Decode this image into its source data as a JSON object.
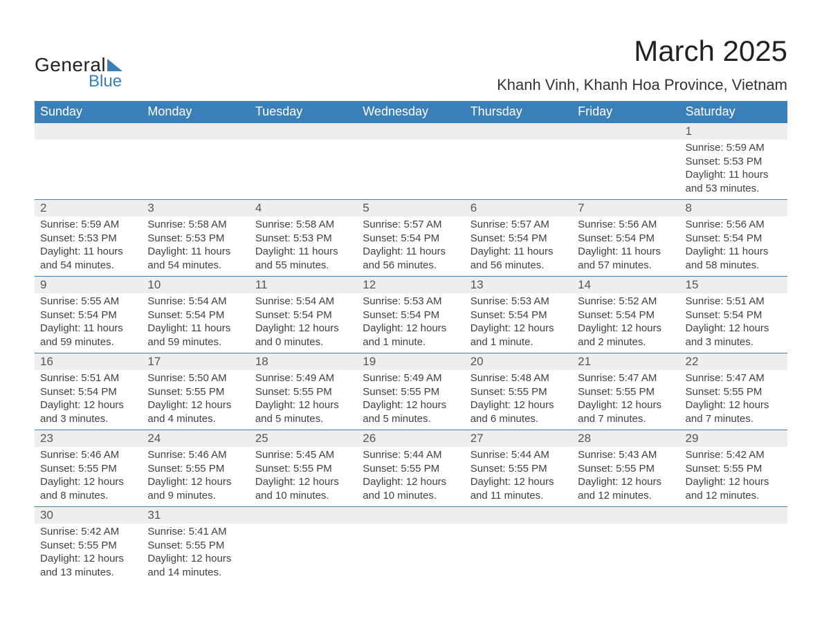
{
  "logo": {
    "line1": "General",
    "line2": "Blue"
  },
  "title": "March 2025",
  "location": "Khanh Vinh, Khanh Hoa Province, Vietnam",
  "colors": {
    "header_bg": "#3b7fb8",
    "header_text": "#ffffff",
    "daynum_bg": "#eeeeee",
    "border": "#3b7fb8",
    "body_text": "#404040",
    "title_text": "#222222",
    "logo_blue": "#3b7fb8"
  },
  "typography": {
    "title_fontsize": 42,
    "location_fontsize": 22,
    "dayheader_fontsize": 18,
    "daynum_fontsize": 17,
    "cell_fontsize": 15,
    "font_family": "Arial"
  },
  "day_headers": [
    "Sunday",
    "Monday",
    "Tuesday",
    "Wednesday",
    "Thursday",
    "Friday",
    "Saturday"
  ],
  "weeks": [
    [
      null,
      null,
      null,
      null,
      null,
      null,
      {
        "n": "1",
        "sr": "Sunrise: 5:59 AM",
        "ss": "Sunset: 5:53 PM",
        "d1": "Daylight: 11 hours",
        "d2": "and 53 minutes."
      }
    ],
    [
      {
        "n": "2",
        "sr": "Sunrise: 5:59 AM",
        "ss": "Sunset: 5:53 PM",
        "d1": "Daylight: 11 hours",
        "d2": "and 54 minutes."
      },
      {
        "n": "3",
        "sr": "Sunrise: 5:58 AM",
        "ss": "Sunset: 5:53 PM",
        "d1": "Daylight: 11 hours",
        "d2": "and 54 minutes."
      },
      {
        "n": "4",
        "sr": "Sunrise: 5:58 AM",
        "ss": "Sunset: 5:53 PM",
        "d1": "Daylight: 11 hours",
        "d2": "and 55 minutes."
      },
      {
        "n": "5",
        "sr": "Sunrise: 5:57 AM",
        "ss": "Sunset: 5:54 PM",
        "d1": "Daylight: 11 hours",
        "d2": "and 56 minutes."
      },
      {
        "n": "6",
        "sr": "Sunrise: 5:57 AM",
        "ss": "Sunset: 5:54 PM",
        "d1": "Daylight: 11 hours",
        "d2": "and 56 minutes."
      },
      {
        "n": "7",
        "sr": "Sunrise: 5:56 AM",
        "ss": "Sunset: 5:54 PM",
        "d1": "Daylight: 11 hours",
        "d2": "and 57 minutes."
      },
      {
        "n": "8",
        "sr": "Sunrise: 5:56 AM",
        "ss": "Sunset: 5:54 PM",
        "d1": "Daylight: 11 hours",
        "d2": "and 58 minutes."
      }
    ],
    [
      {
        "n": "9",
        "sr": "Sunrise: 5:55 AM",
        "ss": "Sunset: 5:54 PM",
        "d1": "Daylight: 11 hours",
        "d2": "and 59 minutes."
      },
      {
        "n": "10",
        "sr": "Sunrise: 5:54 AM",
        "ss": "Sunset: 5:54 PM",
        "d1": "Daylight: 11 hours",
        "d2": "and 59 minutes."
      },
      {
        "n": "11",
        "sr": "Sunrise: 5:54 AM",
        "ss": "Sunset: 5:54 PM",
        "d1": "Daylight: 12 hours",
        "d2": "and 0 minutes."
      },
      {
        "n": "12",
        "sr": "Sunrise: 5:53 AM",
        "ss": "Sunset: 5:54 PM",
        "d1": "Daylight: 12 hours",
        "d2": "and 1 minute."
      },
      {
        "n": "13",
        "sr": "Sunrise: 5:53 AM",
        "ss": "Sunset: 5:54 PM",
        "d1": "Daylight: 12 hours",
        "d2": "and 1 minute."
      },
      {
        "n": "14",
        "sr": "Sunrise: 5:52 AM",
        "ss": "Sunset: 5:54 PM",
        "d1": "Daylight: 12 hours",
        "d2": "and 2 minutes."
      },
      {
        "n": "15",
        "sr": "Sunrise: 5:51 AM",
        "ss": "Sunset: 5:54 PM",
        "d1": "Daylight: 12 hours",
        "d2": "and 3 minutes."
      }
    ],
    [
      {
        "n": "16",
        "sr": "Sunrise: 5:51 AM",
        "ss": "Sunset: 5:54 PM",
        "d1": "Daylight: 12 hours",
        "d2": "and 3 minutes."
      },
      {
        "n": "17",
        "sr": "Sunrise: 5:50 AM",
        "ss": "Sunset: 5:55 PM",
        "d1": "Daylight: 12 hours",
        "d2": "and 4 minutes."
      },
      {
        "n": "18",
        "sr": "Sunrise: 5:49 AM",
        "ss": "Sunset: 5:55 PM",
        "d1": "Daylight: 12 hours",
        "d2": "and 5 minutes."
      },
      {
        "n": "19",
        "sr": "Sunrise: 5:49 AM",
        "ss": "Sunset: 5:55 PM",
        "d1": "Daylight: 12 hours",
        "d2": "and 5 minutes."
      },
      {
        "n": "20",
        "sr": "Sunrise: 5:48 AM",
        "ss": "Sunset: 5:55 PM",
        "d1": "Daylight: 12 hours",
        "d2": "and 6 minutes."
      },
      {
        "n": "21",
        "sr": "Sunrise: 5:47 AM",
        "ss": "Sunset: 5:55 PM",
        "d1": "Daylight: 12 hours",
        "d2": "and 7 minutes."
      },
      {
        "n": "22",
        "sr": "Sunrise: 5:47 AM",
        "ss": "Sunset: 5:55 PM",
        "d1": "Daylight: 12 hours",
        "d2": "and 7 minutes."
      }
    ],
    [
      {
        "n": "23",
        "sr": "Sunrise: 5:46 AM",
        "ss": "Sunset: 5:55 PM",
        "d1": "Daylight: 12 hours",
        "d2": "and 8 minutes."
      },
      {
        "n": "24",
        "sr": "Sunrise: 5:46 AM",
        "ss": "Sunset: 5:55 PM",
        "d1": "Daylight: 12 hours",
        "d2": "and 9 minutes."
      },
      {
        "n": "25",
        "sr": "Sunrise: 5:45 AM",
        "ss": "Sunset: 5:55 PM",
        "d1": "Daylight: 12 hours",
        "d2": "and 10 minutes."
      },
      {
        "n": "26",
        "sr": "Sunrise: 5:44 AM",
        "ss": "Sunset: 5:55 PM",
        "d1": "Daylight: 12 hours",
        "d2": "and 10 minutes."
      },
      {
        "n": "27",
        "sr": "Sunrise: 5:44 AM",
        "ss": "Sunset: 5:55 PM",
        "d1": "Daylight: 12 hours",
        "d2": "and 11 minutes."
      },
      {
        "n": "28",
        "sr": "Sunrise: 5:43 AM",
        "ss": "Sunset: 5:55 PM",
        "d1": "Daylight: 12 hours",
        "d2": "and 12 minutes."
      },
      {
        "n": "29",
        "sr": "Sunrise: 5:42 AM",
        "ss": "Sunset: 5:55 PM",
        "d1": "Daylight: 12 hours",
        "d2": "and 12 minutes."
      }
    ],
    [
      {
        "n": "30",
        "sr": "Sunrise: 5:42 AM",
        "ss": "Sunset: 5:55 PM",
        "d1": "Daylight: 12 hours",
        "d2": "and 13 minutes."
      },
      {
        "n": "31",
        "sr": "Sunrise: 5:41 AM",
        "ss": "Sunset: 5:55 PM",
        "d1": "Daylight: 12 hours",
        "d2": "and 14 minutes."
      },
      null,
      null,
      null,
      null,
      null
    ]
  ]
}
